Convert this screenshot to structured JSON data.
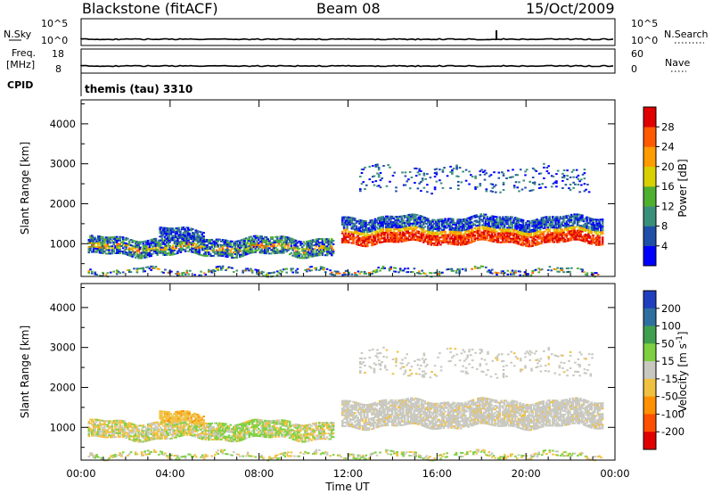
{
  "header": {
    "station": "Blackstone (fitACF)",
    "beam": "Beam 08",
    "date": "15/Oct/2009"
  },
  "summary_panels": {
    "nsky_label": "N.Sky",
    "nsky_ticks": [
      "10^5",
      "10^0"
    ],
    "nsearch_label": "N.Search",
    "nsearch_ticks": [
      "10^5",
      "10^0"
    ],
    "freq_label": "Freq.",
    "freq_unit": "[MHz]",
    "freq_ticks": [
      "18",
      "8"
    ],
    "nave_label": "Nave",
    "nave_ticks": [
      "60",
      "0"
    ],
    "cpid_label": "CPID",
    "cpid_value": "themis (tau) 3310"
  },
  "chart_data": [
    {
      "type": "heatmap",
      "name": "power-panel",
      "ylabel": "Slant Range [km]",
      "y_ticks": [
        "1000",
        "2000",
        "3000",
        "4000"
      ],
      "ylim": [
        180,
        4600
      ],
      "xlim": [
        0,
        24
      ],
      "x_ticks": [
        "00:00",
        "04:00",
        "08:00",
        "12:00",
        "16:00",
        "20:00",
        "00:00"
      ],
      "colorbar": {
        "label": "Power [dB]",
        "ticks": [
          "4",
          "8",
          "12",
          "16",
          "20",
          "24",
          "28"
        ],
        "colors": [
          "#0000ff",
          "#1f4fa8",
          "#3a8f7a",
          "#4fb030",
          "#d8d000",
          "#ff9c00",
          "#ff5a00",
          "#e00000"
        ]
      },
      "bands": [
        {
          "t0": 0.3,
          "t1": 11.3,
          "r0": 700,
          "r1": 1150,
          "level": "mixed-low"
        },
        {
          "t0": 3.5,
          "t1": 5.5,
          "r0": 1100,
          "r1": 1350,
          "level": "low"
        },
        {
          "t0": 11.7,
          "t1": 23.4,
          "r0": 1000,
          "r1": 1650,
          "level": "high"
        },
        {
          "t0": 0.3,
          "t1": 23.4,
          "r0": 240,
          "r1": 340,
          "level": "mixed-low"
        },
        {
          "t0": 12.5,
          "t1": 23.0,
          "r0": 2300,
          "r1": 2900,
          "level": "sparse"
        }
      ]
    },
    {
      "type": "heatmap",
      "name": "velocity-panel",
      "ylabel": "Slant Range [km]",
      "xlabel": "Time UT",
      "y_ticks": [
        "1000",
        "2000",
        "3000",
        "4000"
      ],
      "ylim": [
        180,
        4600
      ],
      "xlim": [
        0,
        24
      ],
      "x_ticks": [
        "00:00",
        "04:00",
        "08:00",
        "12:00",
        "16:00",
        "20:00",
        "00:00"
      ],
      "colorbar": {
        "label": "Velocity [m s^-1]",
        "ticks": [
          "200",
          "100",
          "50",
          "15",
          "-15",
          "-50",
          "-100",
          "-200"
        ],
        "colors": [
          "#1f3fbf",
          "#2f6f9f",
          "#3f9f4f",
          "#7fd040",
          "#c8c8c0",
          "#f0c040",
          "#ff9000",
          "#ff5000",
          "#e00000"
        ]
      },
      "bands": [
        {
          "t0": 0.3,
          "t1": 11.3,
          "r0": 700,
          "r1": 1150,
          "level": "green-orange"
        },
        {
          "t0": 3.5,
          "t1": 5.5,
          "r0": 1100,
          "r1": 1350,
          "level": "orange"
        },
        {
          "t0": 11.7,
          "t1": 23.4,
          "r0": 1000,
          "r1": 1650,
          "level": "grey"
        },
        {
          "t0": 0.3,
          "t1": 23.4,
          "r0": 240,
          "r1": 340,
          "level": "mixed"
        },
        {
          "t0": 12.5,
          "t1": 23.0,
          "r0": 2300,
          "r1": 2900,
          "level": "sparse-grey"
        }
      ]
    }
  ]
}
